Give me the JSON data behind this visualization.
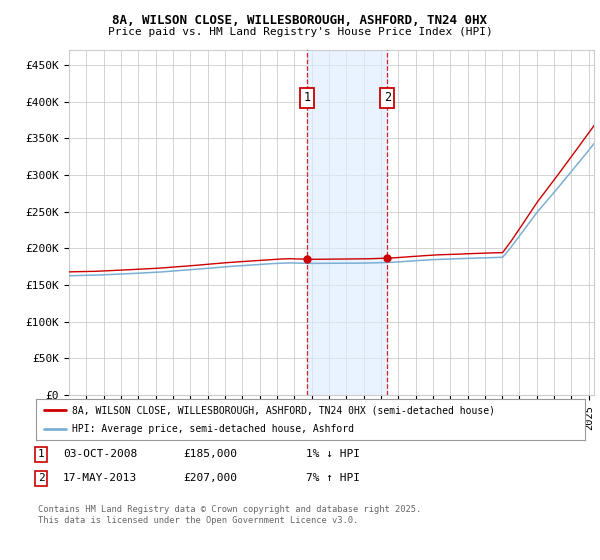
{
  "title_line1": "8A, WILSON CLOSE, WILLESBOROUGH, ASHFORD, TN24 0HX",
  "title_line2": "Price paid vs. HM Land Registry's House Price Index (HPI)",
  "ylabel_ticks": [
    "£0",
    "£50K",
    "£100K",
    "£150K",
    "£200K",
    "£250K",
    "£300K",
    "£350K",
    "£400K",
    "£450K"
  ],
  "ytick_values": [
    0,
    50000,
    100000,
    150000,
    200000,
    250000,
    300000,
    350000,
    400000,
    450000
  ],
  "ylim": [
    0,
    470000
  ],
  "xlim_start": 1995.0,
  "xlim_end": 2025.3,
  "red_line_color": "#cc0000",
  "blue_line_color": "#7bafd4",
  "marker1_date": 2008.75,
  "marker1_price": 185000,
  "marker2_date": 2013.37,
  "marker2_price": 207000,
  "annotation1_label": "1",
  "annotation2_label": "2",
  "legend_label_red": "8A, WILSON CLOSE, WILLESBOROUGH, ASHFORD, TN24 0HX (semi-detached house)",
  "legend_label_blue": "HPI: Average price, semi-detached house, Ashford",
  "table_row1": [
    "1",
    "03-OCT-2008",
    "£185,000",
    "1% ↓ HPI"
  ],
  "table_row2": [
    "2",
    "17-MAY-2013",
    "£207,000",
    "7% ↑ HPI"
  ],
  "footer_text": "Contains HM Land Registry data © Crown copyright and database right 2025.\nThis data is licensed under the Open Government Licence v3.0.",
  "background_color": "#ffffff",
  "plot_bg_color": "#ffffff",
  "grid_color": "#cccccc",
  "shade_color": "#ddeeff",
  "dot_color": "#cc0000"
}
